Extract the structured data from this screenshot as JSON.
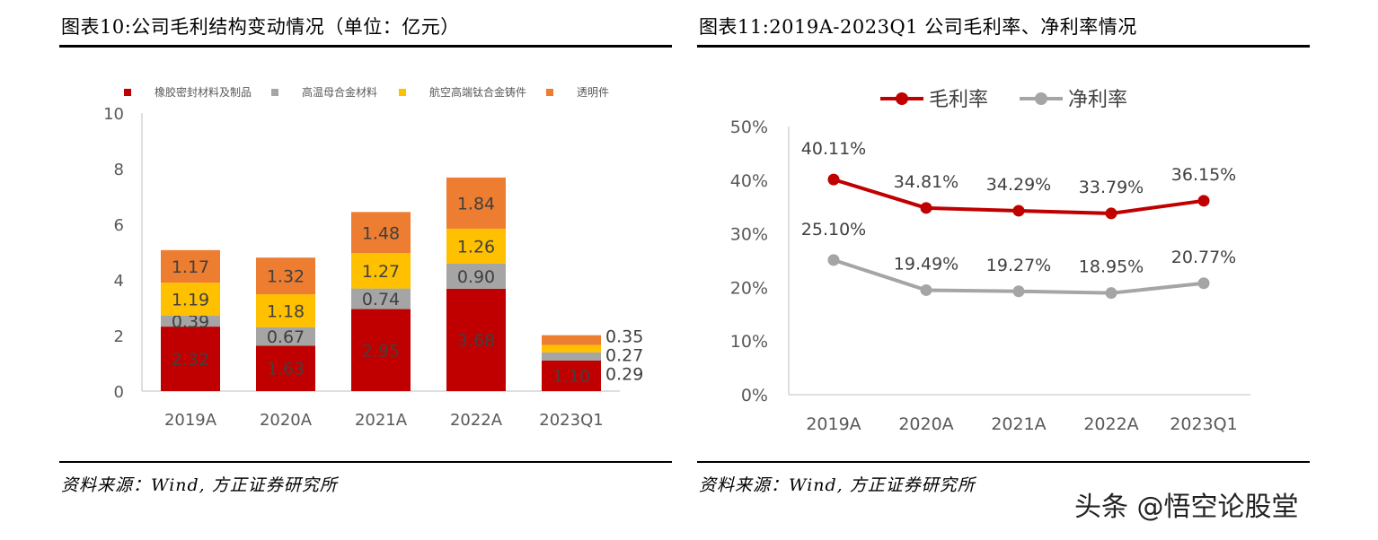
{
  "left": {
    "title": "图表10:公司毛利结构变动情况（单位：亿元）",
    "source": "资料来源：Wind, 方正证券研究所"
  },
  "right": {
    "title": "图表11:2019A-2023Q1 公司毛利率、净利率情况",
    "source": "资料来源：Wind, 方正证券研究所"
  },
  "watermark": "头条 @悟空论股堂",
  "chart_data": [
    {
      "type": "bar",
      "stacked": true,
      "categories": [
        "2019A",
        "2020A",
        "2021A",
        "2022A",
        "2023Q1"
      ],
      "ylim": [
        0,
        10
      ],
      "yticks": [
        "0",
        "2",
        "4",
        "6",
        "8",
        "10"
      ],
      "legend": "top",
      "series": [
        {
          "name": "橡胶密封材料及制品",
          "color": "#C00000",
          "values": [
            2.32,
            1.63,
            2.95,
            3.68,
            1.1
          ]
        },
        {
          "name": "高温母合金材料",
          "color": "#A5A5A5",
          "values": [
            0.39,
            0.67,
            0.74,
            0.9,
            0.29
          ]
        },
        {
          "name": "航空高端钛合金铸件",
          "color": "#FFC000",
          "values": [
            1.19,
            1.18,
            1.27,
            1.26,
            0.27
          ]
        },
        {
          "name": "透明件",
          "color": "#ED7D31",
          "values": [
            1.17,
            1.32,
            1.48,
            1.84,
            0.35
          ]
        }
      ]
    },
    {
      "type": "line",
      "categories": [
        "2019A",
        "2020A",
        "2021A",
        "2022A",
        "2023Q1"
      ],
      "ylim": [
        0,
        50
      ],
      "yticks": [
        "0%",
        "10%",
        "20%",
        "30%",
        "40%",
        "50%"
      ],
      "legend": "top",
      "series": [
        {
          "name": "毛利率",
          "color": "#C00000",
          "values": [
            40.11,
            34.81,
            34.29,
            33.79,
            36.15
          ],
          "labels": [
            "40.11%",
            "34.81%",
            "34.29%",
            "33.79%",
            "36.15%"
          ]
        },
        {
          "name": "净利率",
          "color": "#A5A5A5",
          "values": [
            25.1,
            19.49,
            19.27,
            18.95,
            20.77
          ],
          "labels": [
            "25.10%",
            "19.49%",
            "19.27%",
            "18.95%",
            "20.77%"
          ]
        }
      ]
    }
  ]
}
